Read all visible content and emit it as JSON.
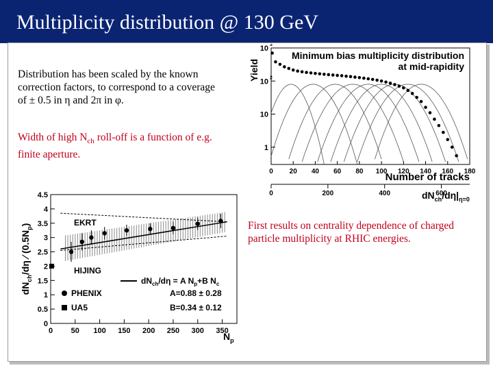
{
  "slide": {
    "title": "Multiplicity distribution @ 130 GeV",
    "para1": [
      "Distribution has been scaled by the known",
      "correction factors, to correspond to a coverage",
      "of ± 0.5 in η and 2π in φ."
    ],
    "para2_line1_a": "Width of high N",
    "para2_line1_sub": "ch",
    "para2_line1_b": " roll-off is a function of e.g.",
    "para2_line2": "finite aperture.",
    "para3": [
      "First results on centrality dependence of charged",
      "particle multiplicity at RHIC energies."
    ]
  },
  "chart_data": [
    {
      "type": "scatter",
      "title": "Minimum bias multiplicity distribution",
      "subtitle": "at mid-rapidity",
      "ylabel": "Yield",
      "xlabel": "Number of tracks",
      "xlabel2": "dN",
      "xlabel2_sub": "ch",
      "xlabel2_mid": "/dη|",
      "xlabel2_sub2": "η=0",
      "ylog": true,
      "xlim": [
        0,
        180
      ],
      "ylim": [
        0.3,
        1000
      ],
      "xticks": [
        "0",
        "20",
        "40",
        "60",
        "80",
        "100",
        "120",
        "140",
        "160",
        "180"
      ],
      "yticks": [
        "1",
        "10",
        "10",
        "10"
      ],
      "ytick_exp": [
        "",
        "",
        "2",
        "3"
      ],
      "x2ticks": [
        "0",
        "200",
        "400",
        "600"
      ],
      "x2_max": 700,
      "series": [
        {
          "x": [
            1,
            4,
            8,
            12,
            16,
            20,
            24,
            28,
            32,
            36,
            40,
            44,
            48,
            52,
            56,
            60,
            64,
            68,
            72,
            76,
            80,
            84,
            88,
            92,
            96,
            100,
            104,
            108,
            112,
            116,
            120,
            124,
            128,
            132,
            136,
            140,
            144,
            148,
            152,
            156,
            160,
            164,
            168
          ],
          "y": [
            700,
            380,
            320,
            270,
            240,
            215,
            200,
            190,
            182,
            176,
            170,
            165,
            160,
            156,
            152,
            148,
            145,
            140,
            136,
            131,
            127,
            122,
            117,
            112,
            106,
            100,
            93,
            86,
            78,
            70,
            62,
            52,
            42,
            32,
            24,
            16,
            11,
            7,
            4.5,
            2.8,
            1.7,
            1.0,
            0.55
          ]
        }
      ],
      "centrality_curves": [
        {
          "mu": 18,
          "sigma": 9
        },
        {
          "mu": 38,
          "sigma": 12
        },
        {
          "mu": 58,
          "sigma": 13
        },
        {
          "mu": 74,
          "sigma": 14
        },
        {
          "mu": 88,
          "sigma": 14
        },
        {
          "mu": 100,
          "sigma": 14
        },
        {
          "mu": 112,
          "sigma": 14
        },
        {
          "mu": 124,
          "sigma": 14
        },
        {
          "mu": 136,
          "sigma": 13
        }
      ]
    },
    {
      "type": "scatter",
      "ylabel_a": "dN",
      "ylabel_sub": "ch",
      "ylabel_b": "/dη ⁄ (0.5N",
      "ylabel_sub2": "p",
      "ylabel_c": ")",
      "xlabel": "N",
      "xlabel_sub": "p",
      "xlim": [
        0,
        380
      ],
      "ylim": [
        0,
        4.5
      ],
      "xticks": [
        0,
        50,
        100,
        150,
        200,
        250,
        300,
        350
      ],
      "yticks": [
        0,
        0.5,
        1,
        1.5,
        2,
        2.5,
        3,
        3.5,
        4,
        4.5
      ],
      "label_ekrt": "EKRT",
      "label_hijing": "HIJING",
      "legend": {
        "fit_a": "dN",
        "fit_sub": "ch",
        "fit_b": "/dη = A N",
        "fit_sub2": "p",
        "fit_c": "+B N",
        "fit_sub3": "c",
        "phenix": "PHENIX",
        "ua5": "UA5",
        "A": "A=0.88 ± 0.28",
        "B": "B=0.34 ± 0.12"
      },
      "phenix_points": [
        {
          "x": 42,
          "y": 2.5,
          "err": 0.35
        },
        {
          "x": 64,
          "y": 2.85,
          "err": 0.3
        },
        {
          "x": 83,
          "y": 3.0,
          "err": 0.25
        },
        {
          "x": 110,
          "y": 3.15,
          "err": 0.22
        },
        {
          "x": 155,
          "y": 3.25,
          "err": 0.2
        },
        {
          "x": 203,
          "y": 3.3,
          "err": 0.2
        },
        {
          "x": 250,
          "y": 3.33,
          "err": 0.22
        },
        {
          "x": 300,
          "y": 3.48,
          "err": 0.22
        },
        {
          "x": 347,
          "y": 3.58,
          "err": 0.25
        }
      ],
      "ua5_points": [
        {
          "x": 2,
          "y": 2.0
        }
      ],
      "fit_line": [
        [
          20,
          2.6
        ],
        [
          360,
          3.55
        ]
      ],
      "ekrt_line": [
        [
          20,
          3.85
        ],
        [
          360,
          3.55
        ]
      ],
      "hijing_line": [
        [
          20,
          2.55
        ],
        [
          360,
          3.05
        ]
      ]
    }
  ]
}
